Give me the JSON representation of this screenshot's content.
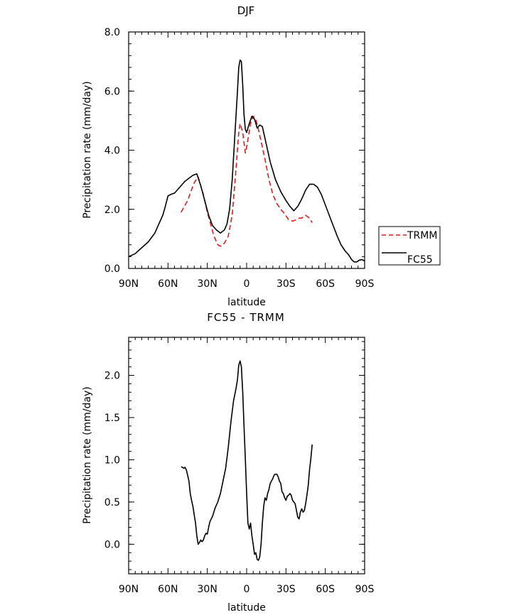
{
  "chart_data": [
    {
      "type": "line",
      "title": "DJF",
      "xlabel": "latitude",
      "ylabel": "Precipitation rate (mm/day)",
      "xlim": [
        -90,
        90
      ],
      "ylim": [
        0,
        8
      ],
      "x_ticks": [
        -90,
        -60,
        -30,
        0,
        30,
        60,
        90
      ],
      "x_tick_labels": [
        "90N",
        "60N",
        "30N",
        "0",
        "30S",
        "60S",
        "90S"
      ],
      "y_ticks": [
        0,
        2,
        4,
        6,
        8
      ],
      "y_tick_labels": [
        "0.0",
        "2.0",
        "4.0",
        "6.0",
        "8.0"
      ],
      "grid": false,
      "legend": "right",
      "series": [
        {
          "name": "TRMM",
          "color": "#e41a1c",
          "dash": "dashed",
          "x": [
            -50,
            -45,
            -40,
            -37,
            -33,
            -30,
            -25,
            -22,
            -20,
            -17,
            -14,
            -11,
            -8,
            -6,
            -5,
            -3,
            -1,
            0,
            3,
            5,
            7,
            9,
            11,
            14,
            17,
            20,
            23,
            26,
            29,
            32,
            35,
            38,
            40,
            42,
            45,
            48,
            50
          ],
          "y": [
            1.9,
            2.3,
            2.9,
            3.1,
            2.5,
            1.9,
            1.1,
            0.8,
            0.75,
            0.85,
            1.1,
            1.8,
            3.4,
            4.6,
            4.9,
            4.6,
            3.9,
            4.1,
            4.9,
            5.15,
            5.05,
            4.7,
            4.3,
            3.7,
            3.0,
            2.5,
            2.2,
            2.0,
            1.85,
            1.65,
            1.6,
            1.65,
            1.7,
            1.7,
            1.8,
            1.7,
            1.55
          ]
        },
        {
          "name": "FC55",
          "color": "#000000",
          "dash": "solid",
          "x": [
            -90,
            -85,
            -80,
            -75,
            -70,
            -67,
            -64,
            -62,
            -60,
            -58,
            -55,
            -52,
            -50,
            -47,
            -44,
            -41,
            -38,
            -35,
            -32,
            -29,
            -26,
            -23,
            -20,
            -17,
            -15,
            -13,
            -11,
            -9,
            -7,
            -6,
            -5,
            -4,
            -3,
            -2,
            -1,
            0,
            2,
            4,
            6,
            8,
            10,
            12,
            14,
            16,
            18,
            20,
            22,
            24,
            26,
            28,
            30,
            33,
            36,
            39,
            42,
            45,
            48,
            51,
            54,
            57,
            60,
            63,
            66,
            69,
            72,
            75,
            78,
            80,
            82,
            84,
            86,
            88,
            90
          ],
          "y": [
            0.4,
            0.5,
            0.7,
            0.9,
            1.2,
            1.5,
            1.8,
            2.1,
            2.45,
            2.5,
            2.55,
            2.7,
            2.8,
            2.95,
            3.05,
            3.15,
            3.2,
            2.8,
            2.3,
            1.8,
            1.45,
            1.3,
            1.2,
            1.3,
            1.5,
            2.0,
            3.0,
            4.5,
            6.0,
            6.8,
            7.05,
            7.0,
            6.2,
            5.2,
            4.7,
            4.6,
            4.9,
            5.15,
            5.05,
            4.75,
            4.85,
            4.8,
            4.4,
            4.0,
            3.6,
            3.3,
            3.0,
            2.8,
            2.6,
            2.45,
            2.3,
            2.1,
            1.95,
            2.1,
            2.35,
            2.65,
            2.85,
            2.85,
            2.75,
            2.5,
            2.15,
            1.8,
            1.45,
            1.1,
            0.8,
            0.6,
            0.45,
            0.3,
            0.22,
            0.22,
            0.28,
            0.3,
            0.25
          ]
        }
      ]
    },
    {
      "type": "line",
      "title": "FC55 - TRMM",
      "xlabel": "latitude",
      "ylabel": "Precipitation rate (mm/day)",
      "xlim": [
        -90,
        90
      ],
      "ylim": [
        -0.35,
        2.45
      ],
      "x_ticks": [
        -90,
        -60,
        -30,
        0,
        30,
        60,
        90
      ],
      "x_tick_labels": [
        "90N",
        "60N",
        "30N",
        "0",
        "30S",
        "60S",
        "90S"
      ],
      "y_ticks": [
        0,
        0.5,
        1,
        1.5,
        2
      ],
      "y_tick_labels": [
        "0.0",
        "0.5",
        "1.0",
        "1.5",
        "2.0"
      ],
      "grid": false,
      "series": [
        {
          "name": "",
          "color": "#000000",
          "dash": "solid",
          "x": [
            -50,
            -48,
            -47,
            -46,
            -44,
            -43,
            -42,
            -41,
            -40,
            -39,
            -38,
            -37,
            -36,
            -35,
            -34,
            -33,
            -32,
            -31,
            -30,
            -29,
            -28,
            -26,
            -24,
            -22,
            -20,
            -18,
            -16,
            -14,
            -12,
            -10,
            -8,
            -7,
            -6,
            -5,
            -4,
            -3,
            -2,
            -1,
            0,
            1,
            2,
            3,
            4,
            5,
            6,
            7,
            8,
            9,
            10,
            11,
            12,
            13,
            14,
            15,
            16,
            17,
            18,
            19,
            20,
            21,
            22,
            23,
            24,
            25,
            26,
            27,
            28,
            29,
            30,
            31,
            32,
            33,
            34,
            35,
            36,
            37,
            38,
            39,
            40,
            41,
            42,
            43,
            44,
            45,
            46,
            47,
            48,
            49,
            50
          ],
          "y": [
            0.92,
            0.9,
            0.91,
            0.88,
            0.75,
            0.6,
            0.52,
            0.45,
            0.35,
            0.25,
            0.1,
            0.0,
            0.02,
            0.05,
            0.03,
            0.05,
            0.1,
            0.13,
            0.12,
            0.2,
            0.27,
            0.33,
            0.43,
            0.5,
            0.6,
            0.75,
            0.9,
            1.15,
            1.45,
            1.7,
            1.85,
            1.95,
            2.12,
            2.17,
            2.1,
            1.8,
            1.4,
            1.0,
            0.6,
            0.25,
            0.18,
            0.25,
            0.1,
            0.0,
            -0.12,
            -0.1,
            -0.18,
            -0.19,
            -0.15,
            0.0,
            0.25,
            0.45,
            0.55,
            0.52,
            0.6,
            0.65,
            0.72,
            0.75,
            0.78,
            0.82,
            0.83,
            0.83,
            0.8,
            0.75,
            0.72,
            0.62,
            0.6,
            0.55,
            0.52,
            0.57,
            0.58,
            0.6,
            0.58,
            0.52,
            0.5,
            0.48,
            0.4,
            0.32,
            0.3,
            0.38,
            0.42,
            0.38,
            0.4,
            0.48,
            0.58,
            0.7,
            0.88,
            1.02,
            1.18
          ]
        }
      ]
    }
  ]
}
